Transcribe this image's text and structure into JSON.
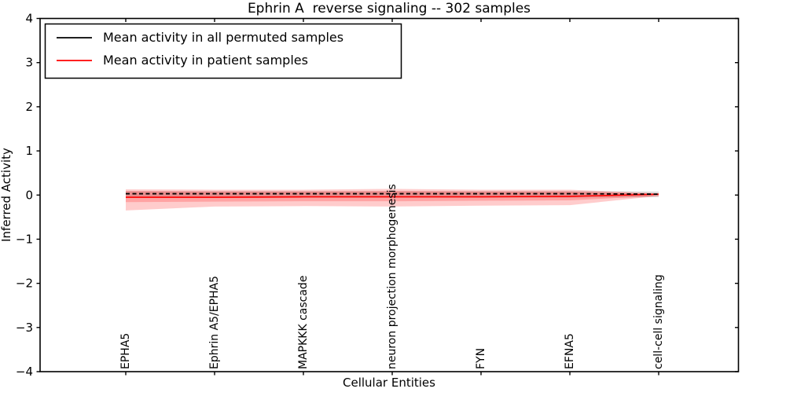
{
  "chart_data": {
    "type": "line",
    "title": "Ephrin A  reverse signaling -- 302 samples",
    "xlabel": "Cellular Entities",
    "ylabel": "Inferred Activity",
    "ylim": [
      -4,
      4
    ],
    "yticks": [
      4,
      3,
      2,
      1,
      0,
      -1,
      -2,
      -3,
      -4
    ],
    "grid": false,
    "legend_position": "upper left",
    "categories": [
      "EPHA5",
      "Ephrin A5/EPHA5",
      "MAPKKK cascade",
      "neuron projection morphogenesis",
      "FYN",
      "EFNA5",
      "cell-cell signaling"
    ],
    "series": [
      {
        "name": "Mean activity in all permuted samples",
        "color": "#000000",
        "line_style": "dashed",
        "values": [
          0.03,
          0.03,
          0.03,
          0.03,
          0.03,
          0.03,
          0.02
        ],
        "band": {
          "color": "#000000",
          "alpha": 0.13,
          "upper": [
            0.09,
            0.09,
            0.09,
            0.09,
            0.09,
            0.09,
            0.08
          ],
          "lower": [
            -0.06,
            -0.06,
            -0.06,
            -0.06,
            -0.06,
            -0.06,
            -0.05
          ]
        }
      },
      {
        "name": "Mean activity in patient samples",
        "color": "#ff0000",
        "line_style": "solid",
        "values": [
          -0.05,
          -0.05,
          -0.04,
          -0.04,
          -0.04,
          -0.03,
          0.02
        ],
        "band": {
          "color": "#ff0000",
          "alpha": 0.2,
          "upper": [
            0.13,
            0.12,
            0.12,
            0.14,
            0.12,
            0.12,
            0.04
          ],
          "lower": [
            -0.35,
            -0.26,
            -0.25,
            -0.26,
            -0.24,
            -0.23,
            -0.02
          ]
        },
        "band_inner": {
          "color": "#ff0000",
          "alpha": 0.2,
          "upper": [
            0.09,
            0.08,
            0.08,
            0.09,
            0.08,
            0.08,
            0.03
          ],
          "lower": [
            -0.16,
            -0.15,
            -0.14,
            -0.14,
            -0.13,
            -0.12,
            -0.02
          ]
        }
      }
    ]
  }
}
